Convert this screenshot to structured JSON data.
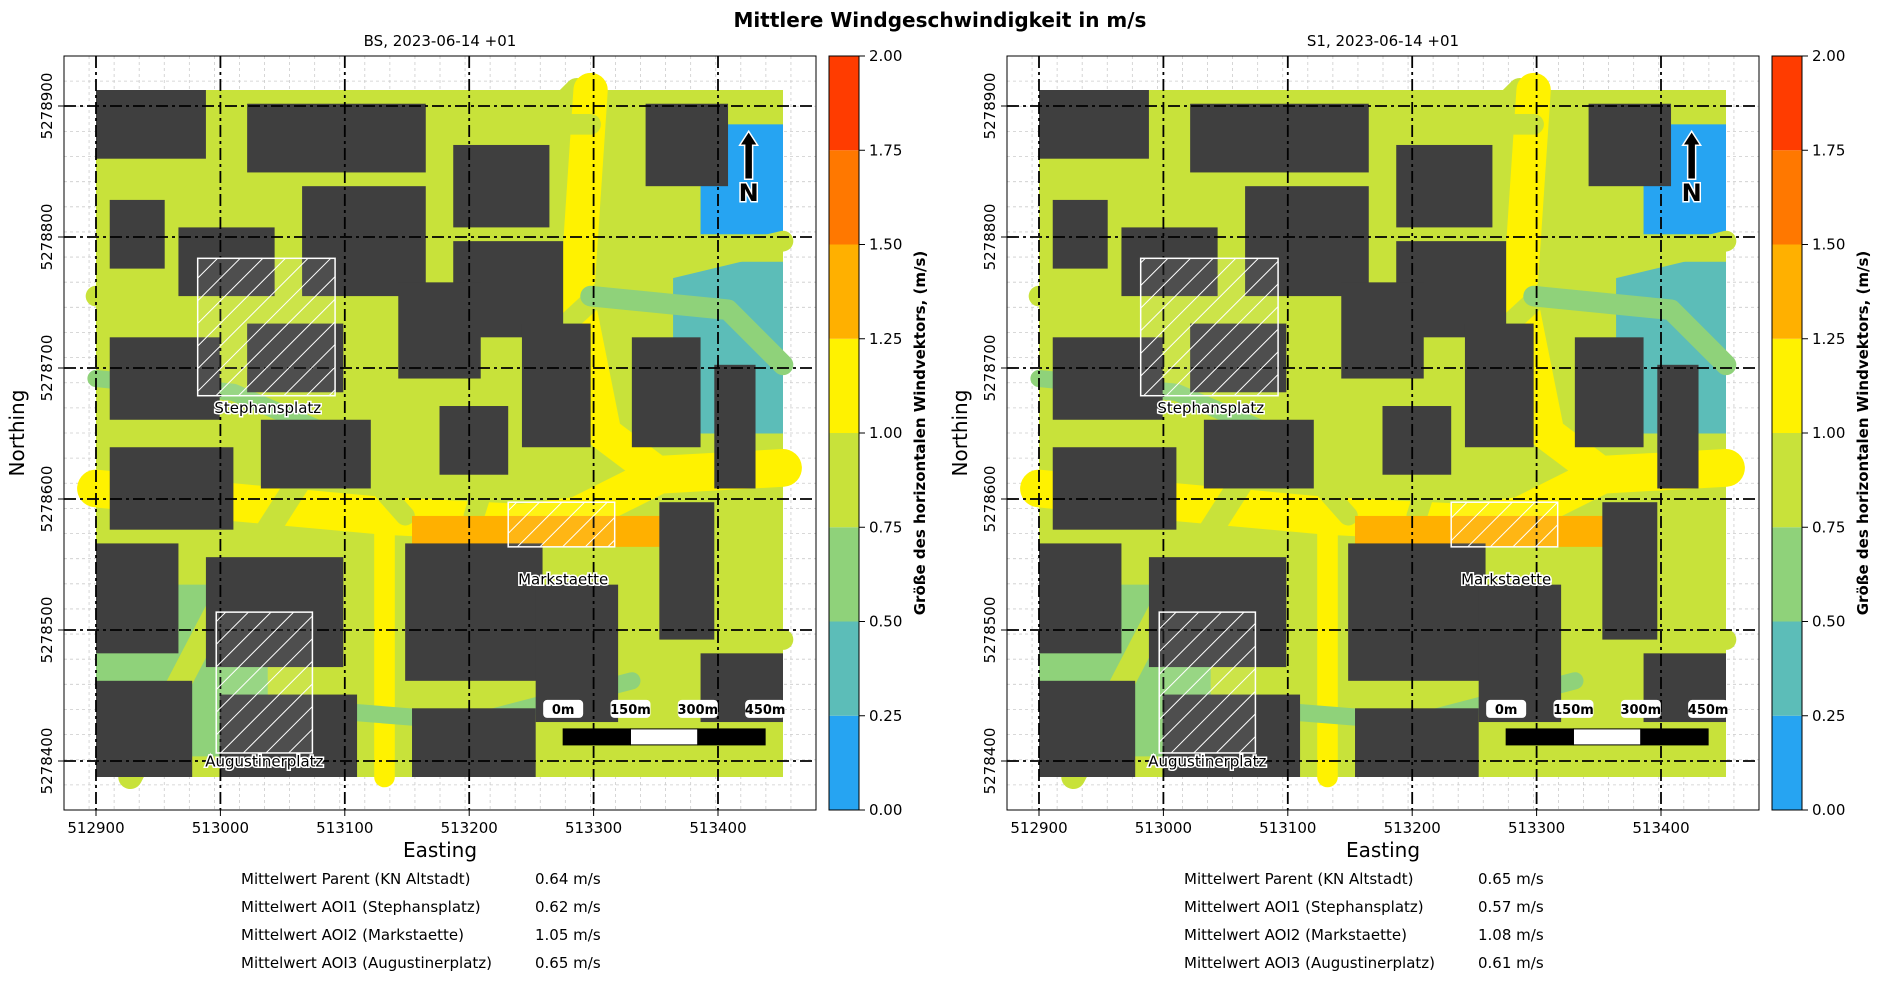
{
  "figure": {
    "title": "Mittlere Windgeschwindigkeit in m/s",
    "colorbar_label": "Größe des horizontalen Windvektors, (m/s)",
    "colorbar_ticks": [
      "0.00",
      "0.25",
      "0.50",
      "0.75",
      "1.00",
      "1.25",
      "1.50",
      "1.75",
      "2.00"
    ],
    "colorbar_colors": [
      "#26a4f2",
      "#5cbdb8",
      "#8fd27a",
      "#c8e23a",
      "#fff200",
      "#ffb000",
      "#ff7800",
      "#ff3c00"
    ],
    "north_label": "N",
    "scalebar_labels": [
      "0m",
      "150m",
      "300m",
      "450m"
    ]
  },
  "panels": [
    {
      "title": "BS, 2023-06-14 +01",
      "xlabel": "Easting",
      "ylabel": "Northing",
      "xticks": [
        "512900",
        "513000",
        "513100",
        "513200",
        "513300",
        "513400"
      ],
      "yticks": [
        "5278400",
        "5278500",
        "5278600",
        "5278700",
        "5278800",
        "5278900"
      ],
      "aois": [
        "Stephansplatz",
        "Markstaette",
        "Augustinerplatz"
      ],
      "stats": [
        {
          "label": "Mittelwert Parent (KN Altstadt)",
          "value": "0.64 m/s"
        },
        {
          "label": "Mittelwert AOI1 (Stephansplatz)",
          "value": "0.62 m/s"
        },
        {
          "label": "Mittelwert AOI2 (Markstaette)",
          "value": "1.05 m/s"
        },
        {
          "label": "Mittelwert AOI3 (Augustinerplatz)",
          "value": "0.65 m/s"
        }
      ]
    },
    {
      "title": "S1, 2023-06-14 +01",
      "xlabel": "Easting",
      "ylabel": "Northing",
      "xticks": [
        "512900",
        "513000",
        "513100",
        "513200",
        "513300",
        "513400"
      ],
      "yticks": [
        "5278400",
        "5278500",
        "5278600",
        "5278700",
        "5278800",
        "5278900"
      ],
      "aois": [
        "Stephansplatz",
        "Markstaette",
        "Augustinerplatz"
      ],
      "stats": [
        {
          "label": "Mittelwert Parent (KN Altstadt)",
          "value": "0.65 m/s"
        },
        {
          "label": "Mittelwert AOI1 (Stephansplatz)",
          "value": "0.57 m/s"
        },
        {
          "label": "Mittelwert AOI2 (Markstaette)",
          "value": "1.08 m/s"
        },
        {
          "label": "Mittelwert AOI3 (Augustinerplatz)",
          "value": "0.61 m/s"
        }
      ]
    }
  ]
}
